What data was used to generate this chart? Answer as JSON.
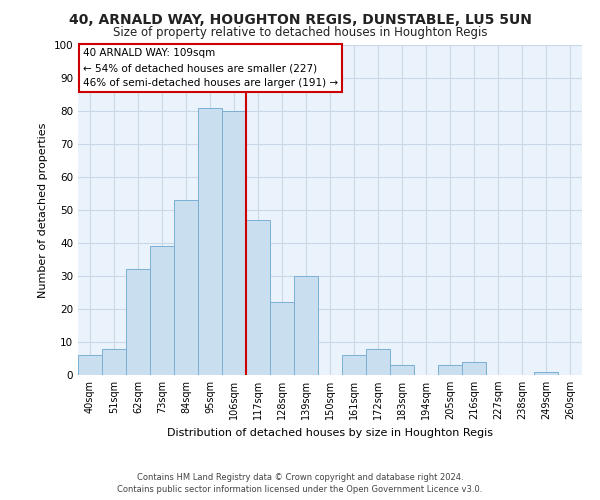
{
  "title": "40, ARNALD WAY, HOUGHTON REGIS, DUNSTABLE, LU5 5UN",
  "subtitle": "Size of property relative to detached houses in Houghton Regis",
  "xlabel": "Distribution of detached houses by size in Houghton Regis",
  "ylabel": "Number of detached properties",
  "bar_labels": [
    "40sqm",
    "51sqm",
    "62sqm",
    "73sqm",
    "84sqm",
    "95sqm",
    "106sqm",
    "117sqm",
    "128sqm",
    "139sqm",
    "150sqm",
    "161sqm",
    "172sqm",
    "183sqm",
    "194sqm",
    "205sqm",
    "216sqm",
    "227sqm",
    "238sqm",
    "249sqm",
    "260sqm"
  ],
  "bar_values": [
    6,
    8,
    32,
    39,
    53,
    81,
    80,
    47,
    22,
    30,
    0,
    6,
    8,
    3,
    0,
    3,
    4,
    0,
    0,
    1,
    0
  ],
  "bar_color": "#c9dff0",
  "bar_edge_color": "#7bafd4",
  "vline_x_idx": 6,
  "vline_color": "#cc0000",
  "annotation_title": "40 ARNALD WAY: 109sqm",
  "annotation_line1": "← 54% of detached houses are smaller (227)",
  "annotation_line2": "46% of semi-detached houses are larger (191) →",
  "annotation_box_color": "#ffffff",
  "annotation_box_edge": "#cc0000",
  "ylim": [
    0,
    100
  ],
  "yticks": [
    0,
    10,
    20,
    30,
    40,
    50,
    60,
    70,
    80,
    90,
    100
  ],
  "footer1": "Contains HM Land Registry data © Crown copyright and database right 2024.",
  "footer2": "Contains public sector information licensed under the Open Government Licence v3.0.",
  "background_color": "#ffffff",
  "plot_bg_color": "#eaf2fb",
  "grid_color": "#c8d8e8"
}
